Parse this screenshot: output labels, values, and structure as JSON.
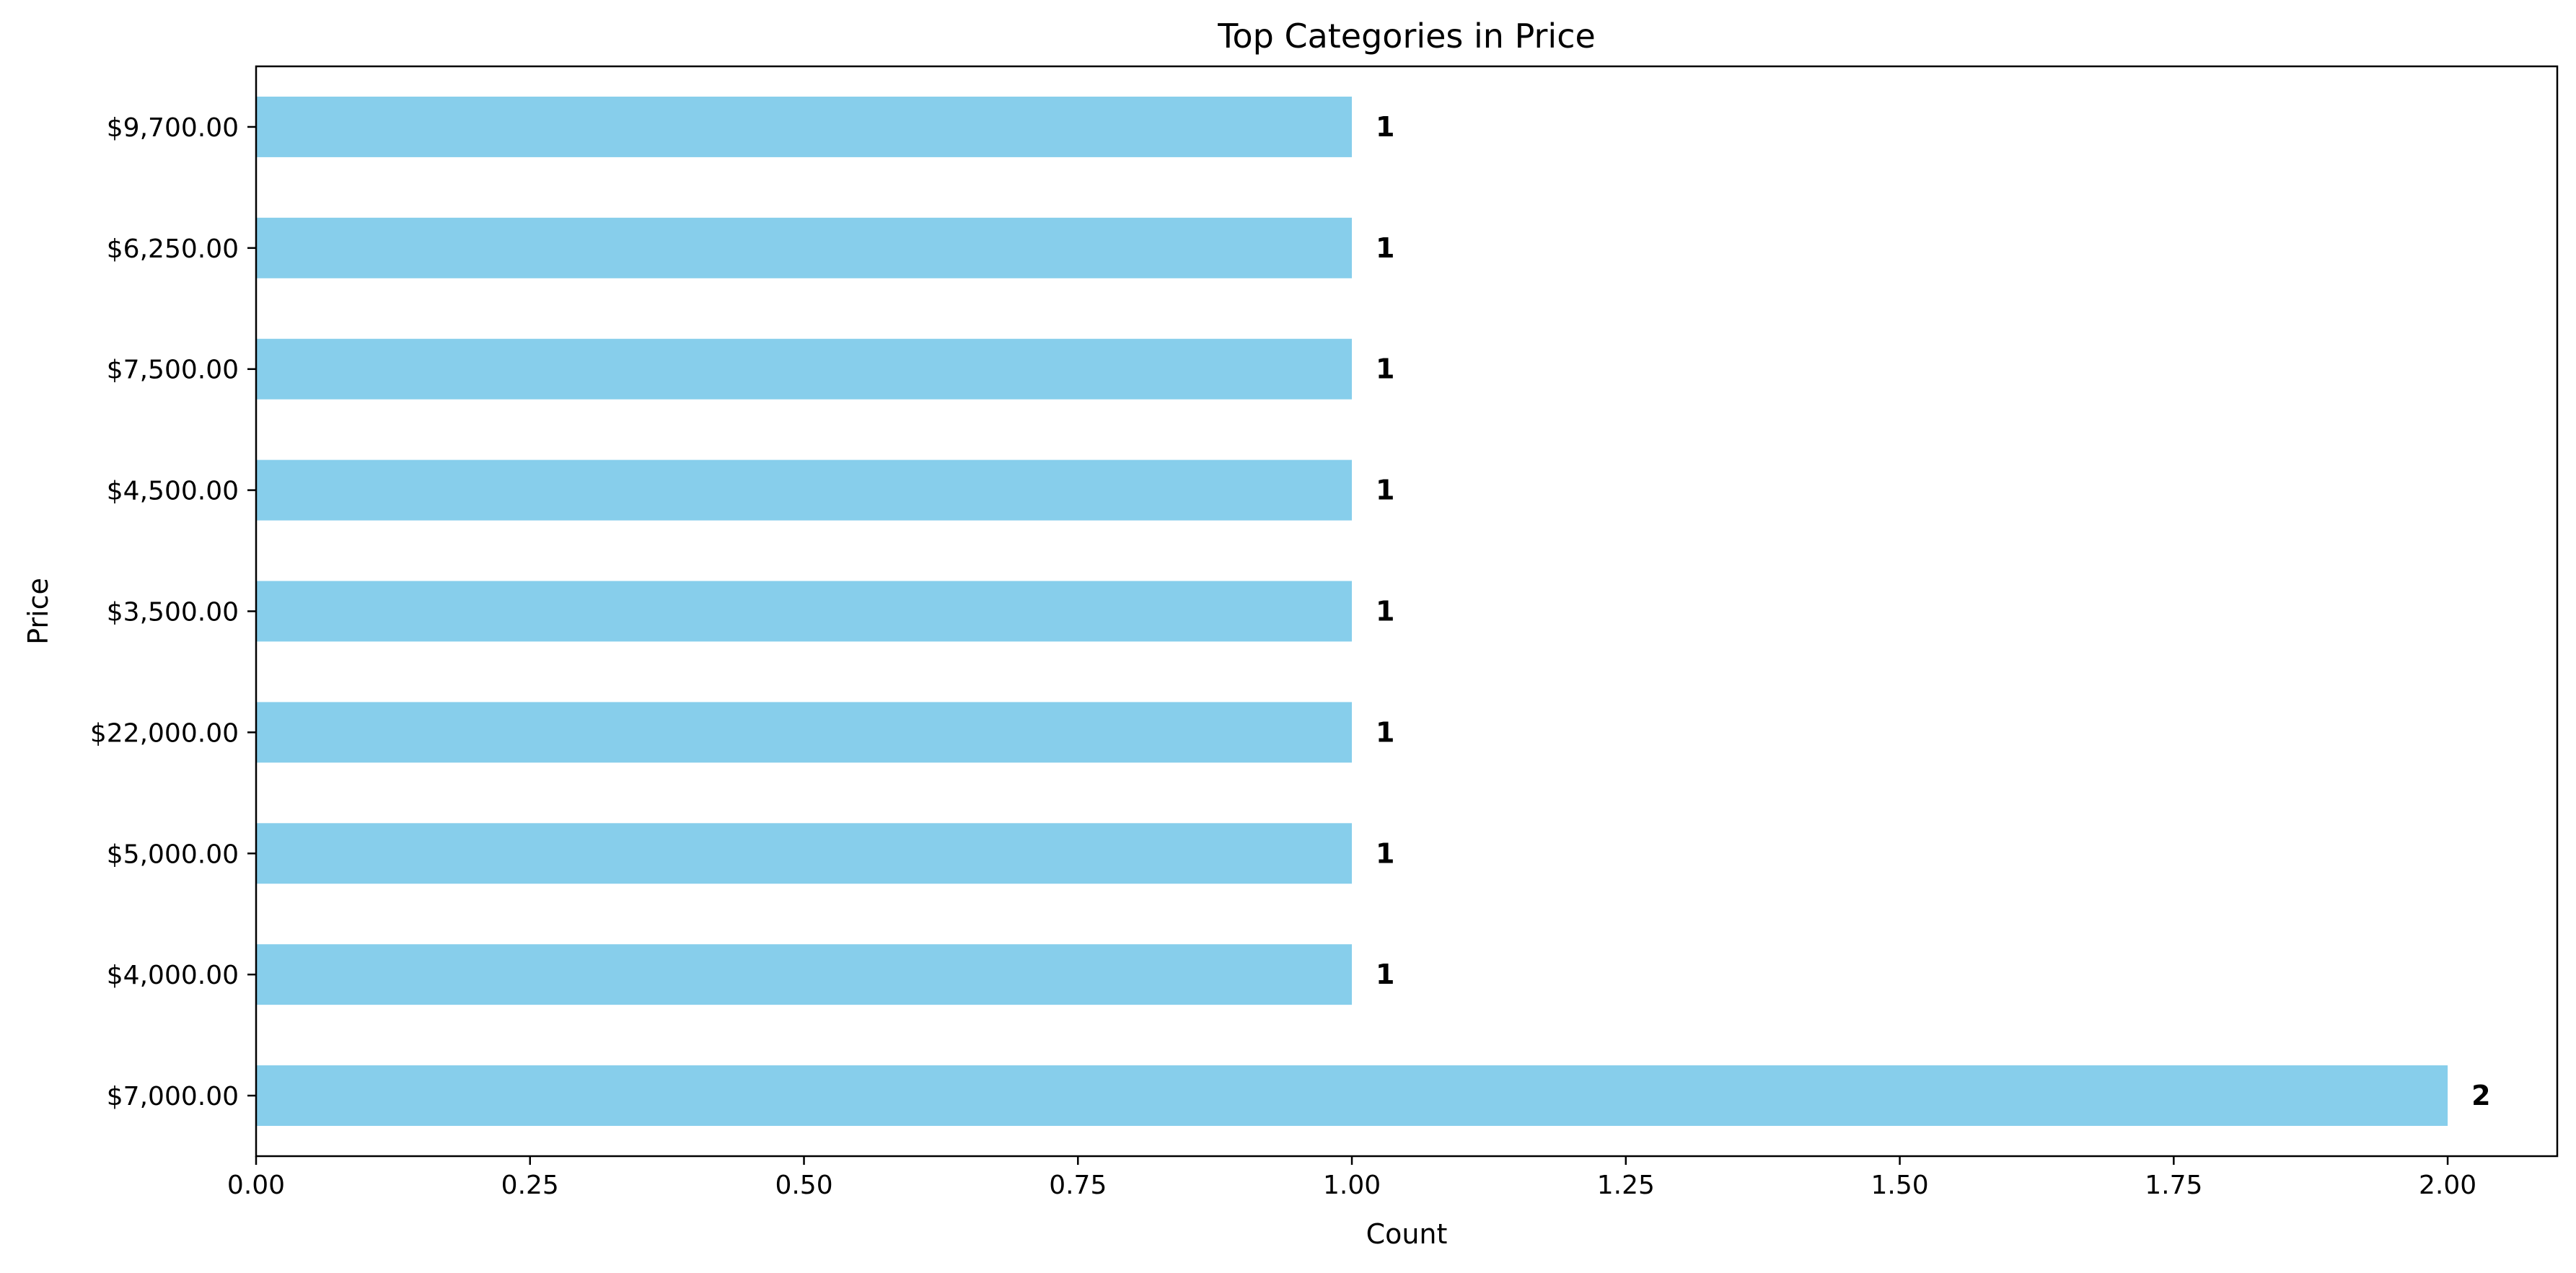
{
  "chart_data": {
    "type": "bar",
    "orientation": "horizontal",
    "title": "Top Categories in Price",
    "xlabel": "Count",
    "ylabel": "Price",
    "categories": [
      "$7,000.00",
      "$4,000.00",
      "$5,000.00",
      "$22,000.00",
      "$3,500.00",
      "$4,500.00",
      "$7,500.00",
      "$6,250.00",
      "$9,700.00"
    ],
    "values": [
      2,
      1,
      1,
      1,
      1,
      1,
      1,
      1,
      1
    ],
    "data_labels": [
      "2",
      "1",
      "1",
      "1",
      "1",
      "1",
      "1",
      "1",
      "1"
    ],
    "xlim": [
      0,
      2.1
    ],
    "x_ticks": [
      0,
      0.25,
      0.5,
      0.75,
      1.0,
      1.25,
      1.5,
      1.75,
      2.0
    ],
    "x_tick_labels": [
      "0.00",
      "0.25",
      "0.50",
      "0.75",
      "1.00",
      "1.25",
      "1.50",
      "1.75",
      "2.00"
    ],
    "bar_color": "#87CEEB",
    "grid": false,
    "legend": "none"
  }
}
